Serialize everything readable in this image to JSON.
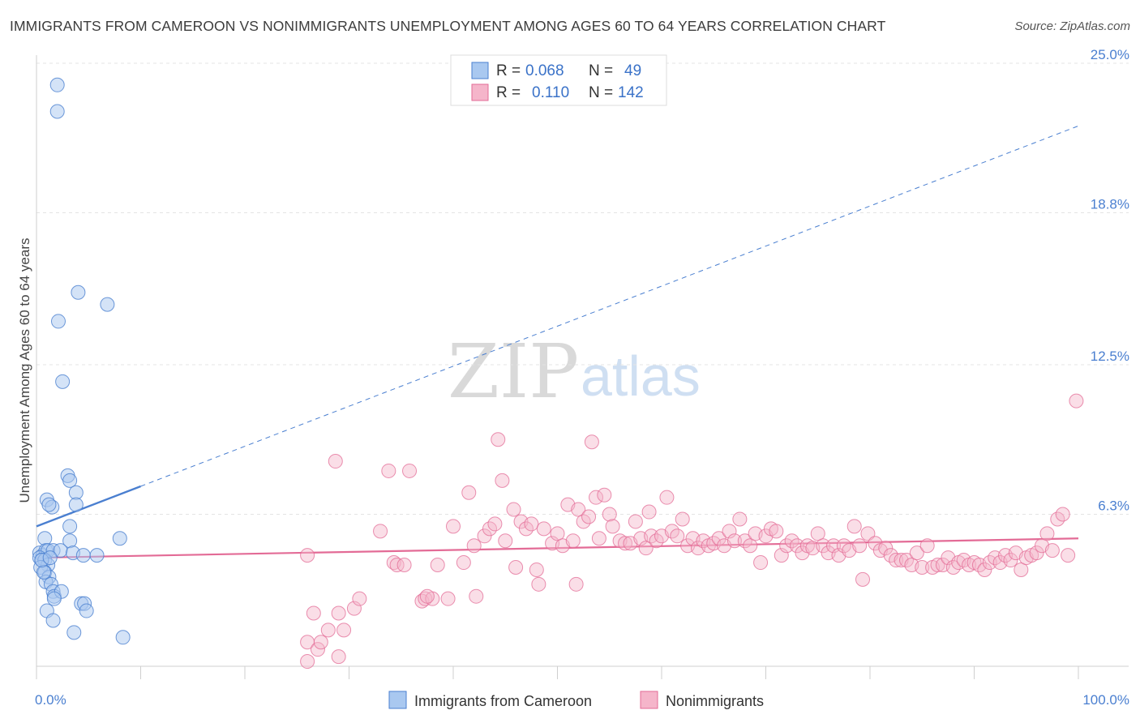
{
  "header": {
    "title": "IMMIGRANTS FROM CAMEROON VS NONIMMIGRANTS UNEMPLOYMENT AMONG AGES 60 TO 64 YEARS CORRELATION CHART",
    "source": "Source: ZipAtlas.com"
  },
  "watermark": {
    "zip": "ZIP",
    "atlas": "atlas"
  },
  "legend_top": {
    "rows": [
      {
        "r_label": "R = ",
        "r_value": "0.068",
        "n_label": "N = ",
        "n_value": "49"
      },
      {
        "r_label": "R = ",
        "r_value": "0.110",
        "n_label": "N = ",
        "n_value": "142"
      }
    ]
  },
  "colors": {
    "blue": "#4a7fd0",
    "blue_fill": "#a9c8f0",
    "pink": "#e36b96",
    "pink_fill": "#f5b5ca"
  },
  "chart_data": {
    "type": "scatter",
    "title": "IMMIGRANTS FROM CAMEROON VS NONIMMIGRANTS UNEMPLOYMENT AMONG AGES 60 TO 64 YEARS CORRELATION CHART",
    "xlabel": "",
    "ylabel": "Unemployment Among Ages 60 to 64 years",
    "xlim": [
      0,
      100
    ],
    "ylim": [
      0,
      25
    ],
    "x_tick_labels": [
      "0.0%",
      "100.0%"
    ],
    "y_tick_values": [
      6.3,
      12.5,
      18.8,
      25.0
    ],
    "y_tick_labels": [
      "6.3%",
      "12.5%",
      "18.8%",
      "25.0%"
    ],
    "grid": true,
    "series": [
      {
        "name": "Immigrants from Cameroon",
        "R": 0.068,
        "N": 49,
        "trend": {
          "x0": 0,
          "y0": 5.8,
          "x1": 100,
          "y1": 22.4,
          "solid_until_x": 10
        },
        "points": [
          [
            2.0,
            24.1
          ],
          [
            2.0,
            23.0
          ],
          [
            4.0,
            15.5
          ],
          [
            6.8,
            15.0
          ],
          [
            2.1,
            14.3
          ],
          [
            2.5,
            11.8
          ],
          [
            3.0,
            7.9
          ],
          [
            3.2,
            7.7
          ],
          [
            3.8,
            7.2
          ],
          [
            1.0,
            6.9
          ],
          [
            3.8,
            6.7
          ],
          [
            1.5,
            6.6
          ],
          [
            1.2,
            6.7
          ],
          [
            3.2,
            5.8
          ],
          [
            3.2,
            5.2
          ],
          [
            8.0,
            5.3
          ],
          [
            0.8,
            5.3
          ],
          [
            0.3,
            4.7
          ],
          [
            0.6,
            4.6
          ],
          [
            0.9,
            4.8
          ],
          [
            1.1,
            4.8
          ],
          [
            1.6,
            4.8
          ],
          [
            2.3,
            4.8
          ],
          [
            3.5,
            4.7
          ],
          [
            4.5,
            4.6
          ],
          [
            5.8,
            4.6
          ],
          [
            0.3,
            4.5
          ],
          [
            0.5,
            4.4
          ],
          [
            0.8,
            4.4
          ],
          [
            1.1,
            4.2
          ],
          [
            0.4,
            4.1
          ],
          [
            0.8,
            3.9
          ],
          [
            1.2,
            3.7
          ],
          [
            0.9,
            3.5
          ],
          [
            1.4,
            3.4
          ],
          [
            0.7,
            3.9
          ],
          [
            1.6,
            3.1
          ],
          [
            1.7,
            2.9
          ],
          [
            2.4,
            3.1
          ],
          [
            1.7,
            2.8
          ],
          [
            4.3,
            2.6
          ],
          [
            4.6,
            2.6
          ],
          [
            4.8,
            2.3
          ],
          [
            1.0,
            2.3
          ],
          [
            1.6,
            1.9
          ],
          [
            3.6,
            1.4
          ],
          [
            8.3,
            1.2
          ],
          [
            0.5,
            4.4
          ],
          [
            1.3,
            4.5
          ]
        ]
      },
      {
        "name": "Nonimmigrants",
        "R": 0.11,
        "N": 142,
        "trend": {
          "x0": 0,
          "y0": 4.5,
          "x1": 100,
          "y1": 5.3,
          "solid_until_x": 100
        },
        "points": [
          [
            29.0,
            2.2
          ],
          [
            26.0,
            1.0
          ],
          [
            26.0,
            0.2
          ],
          [
            26.6,
            2.2
          ],
          [
            27.0,
            0.7
          ],
          [
            27.3,
            1.0
          ],
          [
            28.0,
            1.5
          ],
          [
            29.0,
            0.4
          ],
          [
            29.5,
            1.5
          ],
          [
            30.5,
            2.4
          ],
          [
            31.0,
            2.8
          ],
          [
            26.0,
            4.6
          ],
          [
            28.7,
            8.5
          ],
          [
            33.0,
            5.6
          ],
          [
            34.3,
            4.3
          ],
          [
            34.6,
            4.2
          ],
          [
            35.3,
            4.2
          ],
          [
            37.0,
            2.7
          ],
          [
            37.3,
            2.8
          ],
          [
            38.0,
            2.8
          ],
          [
            37.5,
            2.9
          ],
          [
            38.5,
            4.2
          ],
          [
            39.5,
            2.8
          ],
          [
            33.8,
            8.1
          ],
          [
            35.8,
            8.1
          ],
          [
            40.0,
            5.8
          ],
          [
            41.0,
            4.3
          ],
          [
            41.5,
            7.2
          ],
          [
            42.0,
            5.0
          ],
          [
            42.2,
            2.9
          ],
          [
            43.0,
            5.4
          ],
          [
            43.5,
            5.7
          ],
          [
            44.0,
            5.9
          ],
          [
            44.3,
            9.4
          ],
          [
            44.7,
            7.7
          ],
          [
            45.0,
            5.2
          ],
          [
            45.8,
            6.5
          ],
          [
            46.0,
            4.1
          ],
          [
            46.5,
            6.0
          ],
          [
            47.0,
            5.7
          ],
          [
            47.5,
            5.9
          ],
          [
            48.0,
            4.0
          ],
          [
            48.2,
            3.4
          ],
          [
            48.7,
            5.7
          ],
          [
            49.5,
            5.1
          ],
          [
            50.0,
            5.5
          ],
          [
            50.5,
            5.0
          ],
          [
            51.0,
            6.7
          ],
          [
            51.5,
            5.2
          ],
          [
            51.8,
            3.4
          ],
          [
            52.0,
            6.5
          ],
          [
            52.5,
            6.0
          ],
          [
            53.0,
            6.2
          ],
          [
            53.3,
            9.3
          ],
          [
            53.7,
            7.0
          ],
          [
            54.0,
            5.3
          ],
          [
            54.5,
            7.1
          ],
          [
            55.0,
            6.3
          ],
          [
            55.3,
            5.8
          ],
          [
            56.0,
            5.2
          ],
          [
            56.5,
            5.1
          ],
          [
            57.0,
            5.1
          ],
          [
            57.5,
            6.0
          ],
          [
            58.0,
            5.3
          ],
          [
            58.5,
            4.9
          ],
          [
            58.8,
            6.4
          ],
          [
            59.0,
            5.4
          ],
          [
            59.5,
            5.2
          ],
          [
            60.0,
            5.4
          ],
          [
            60.5,
            7.0
          ],
          [
            61.0,
            5.6
          ],
          [
            61.5,
            5.4
          ],
          [
            62.0,
            6.1
          ],
          [
            62.5,
            5.0
          ],
          [
            63.0,
            5.3
          ],
          [
            63.5,
            4.9
          ],
          [
            64.0,
            5.2
          ],
          [
            64.5,
            5.0
          ],
          [
            65.0,
            5.1
          ],
          [
            65.5,
            5.3
          ],
          [
            66.0,
            5.0
          ],
          [
            66.5,
            5.6
          ],
          [
            67.0,
            5.2
          ],
          [
            67.5,
            6.1
          ],
          [
            68.0,
            5.2
          ],
          [
            68.5,
            5.0
          ],
          [
            69.0,
            5.5
          ],
          [
            69.5,
            4.3
          ],
          [
            70.0,
            5.4
          ],
          [
            70.5,
            5.7
          ],
          [
            71.0,
            5.6
          ],
          [
            71.5,
            4.6
          ],
          [
            72.0,
            5.0
          ],
          [
            72.5,
            5.2
          ],
          [
            73.0,
            5.0
          ],
          [
            73.5,
            4.7
          ],
          [
            74.0,
            5.0
          ],
          [
            74.5,
            4.9
          ],
          [
            75.0,
            5.5
          ],
          [
            75.5,
            5.0
          ],
          [
            76.0,
            4.7
          ],
          [
            76.5,
            5.0
          ],
          [
            77.0,
            4.6
          ],
          [
            77.5,
            5.0
          ],
          [
            78.0,
            4.8
          ],
          [
            78.5,
            5.8
          ],
          [
            79.0,
            5.0
          ],
          [
            79.3,
            3.6
          ],
          [
            79.8,
            5.5
          ],
          [
            80.5,
            5.1
          ],
          [
            81.0,
            4.8
          ],
          [
            81.5,
            4.9
          ],
          [
            82.0,
            4.6
          ],
          [
            82.5,
            4.4
          ],
          [
            83.0,
            4.4
          ],
          [
            83.5,
            4.4
          ],
          [
            84.0,
            4.2
          ],
          [
            84.5,
            4.7
          ],
          [
            85.0,
            4.1
          ],
          [
            85.5,
            5.0
          ],
          [
            86.0,
            4.1
          ],
          [
            86.5,
            4.2
          ],
          [
            87.0,
            4.2
          ],
          [
            87.5,
            4.5
          ],
          [
            88.0,
            4.1
          ],
          [
            88.5,
            4.3
          ],
          [
            89.0,
            4.4
          ],
          [
            89.5,
            4.2
          ],
          [
            90.0,
            4.3
          ],
          [
            90.5,
            4.2
          ],
          [
            91.0,
            4.0
          ],
          [
            91.5,
            4.3
          ],
          [
            92.0,
            4.5
          ],
          [
            92.5,
            4.3
          ],
          [
            93.0,
            4.6
          ],
          [
            93.5,
            4.4
          ],
          [
            94.0,
            4.7
          ],
          [
            94.5,
            4.0
          ],
          [
            95.0,
            4.5
          ],
          [
            95.5,
            4.6
          ],
          [
            96.0,
            4.7
          ],
          [
            96.5,
            5.0
          ],
          [
            97.0,
            5.5
          ],
          [
            97.5,
            4.8
          ],
          [
            98.0,
            6.1
          ],
          [
            98.5,
            6.3
          ],
          [
            99.0,
            4.6
          ],
          [
            99.8,
            11.0
          ]
        ]
      }
    ]
  },
  "legend_bottom": {
    "items": [
      "Immigrants from Cameroon",
      "Nonimmigrants"
    ]
  }
}
